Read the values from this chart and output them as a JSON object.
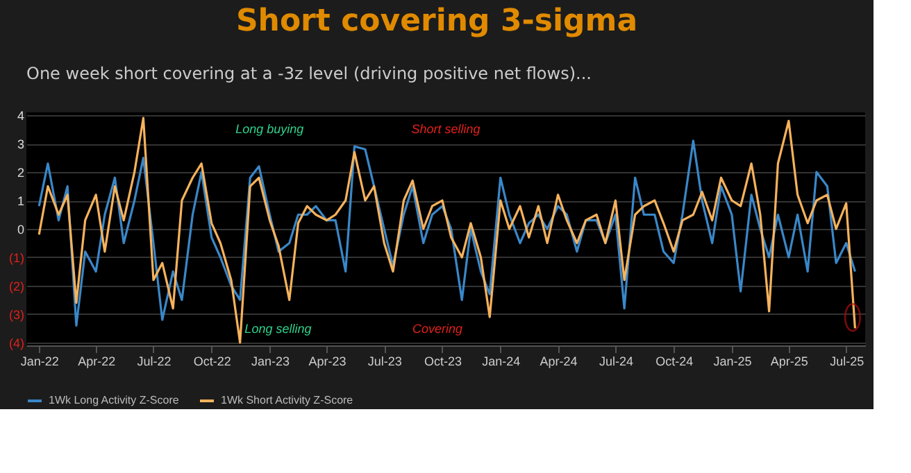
{
  "chart_data": {
    "type": "line",
    "title": "Short covering 3-sigma",
    "subtitle": "One week short covering at a -3z level (driving positive net flows)...",
    "x": [
      "2022-01-01",
      "2022-01-15",
      "2022-02-01",
      "2022-02-15",
      "2022-03-01",
      "2022-03-15",
      "2022-04-01",
      "2022-04-15",
      "2022-05-01",
      "2022-05-15",
      "2022-06-01",
      "2022-06-15",
      "2022-07-01",
      "2022-07-15",
      "2022-08-01",
      "2022-08-15",
      "2022-09-01",
      "2022-09-15",
      "2022-10-01",
      "2022-10-15",
      "2022-11-01",
      "2022-11-15",
      "2022-12-01",
      "2022-12-15",
      "2023-01-01",
      "2023-01-15",
      "2023-02-01",
      "2023-02-15",
      "2023-03-01",
      "2023-03-15",
      "2023-04-01",
      "2023-04-15",
      "2023-05-01",
      "2023-05-15",
      "2023-06-01",
      "2023-06-15",
      "2023-07-01",
      "2023-07-15",
      "2023-08-01",
      "2023-08-15",
      "2023-09-01",
      "2023-09-15",
      "2023-10-01",
      "2023-10-15",
      "2023-11-01",
      "2023-11-15",
      "2023-12-01",
      "2023-12-15",
      "2024-01-01",
      "2024-01-15",
      "2024-02-01",
      "2024-02-15",
      "2024-03-01",
      "2024-03-15",
      "2024-04-01",
      "2024-04-15",
      "2024-05-01",
      "2024-05-15",
      "2024-06-01",
      "2024-06-15",
      "2024-07-01",
      "2024-07-15",
      "2024-08-01",
      "2024-08-15",
      "2024-09-01",
      "2024-09-15",
      "2024-10-01",
      "2024-10-15",
      "2024-11-01",
      "2024-11-15",
      "2024-12-01",
      "2024-12-15",
      "2025-01-01",
      "2025-01-15",
      "2025-02-01",
      "2025-02-15",
      "2025-03-01",
      "2025-03-15",
      "2025-04-01",
      "2025-04-15",
      "2025-05-01",
      "2025-05-15",
      "2025-06-01",
      "2025-06-15",
      "2025-07-01",
      "2025-07-15"
    ],
    "series": [
      {
        "name": "1Wk Long Activity Z-Score",
        "color": "#3a87c8",
        "values": [
          0.8,
          2.3,
          0.3,
          1.5,
          -3.4,
          -0.8,
          -1.5,
          0.5,
          1.8,
          -0.5,
          1.0,
          2.5,
          -0.5,
          -3.2,
          -1.5,
          -2.5,
          0.5,
          2.0,
          -0.3,
          -1.0,
          -2.0,
          -2.5,
          1.8,
          2.2,
          0.5,
          -0.8,
          -0.5,
          0.5,
          0.5,
          0.8,
          0.3,
          0.3,
          -1.5,
          2.9,
          2.8,
          1.5,
          0.0,
          -1.3,
          0.5,
          1.5,
          -0.5,
          0.5,
          0.8,
          0.0,
          -2.5,
          0.0,
          -1.5,
          -2.3,
          1.8,
          0.5,
          -0.5,
          0.2,
          0.5,
          0.0,
          0.8,
          0.5,
          -0.8,
          0.3,
          0.3,
          -0.5,
          0.5,
          -2.8,
          1.8,
          0.5,
          0.5,
          -0.8,
          -1.2,
          0.5,
          3.1,
          1.0,
          -0.5,
          1.5,
          0.5,
          -2.2,
          1.2,
          0.0,
          -1.0,
          0.5,
          -1.0,
          0.5,
          -1.5,
          2.0,
          1.5,
          -1.2,
          -0.5,
          -1.5
        ]
      },
      {
        "name": "1Wk Short Activity Z-Score",
        "color": "#f7b25c",
        "values": [
          -0.2,
          1.5,
          0.5,
          1.2,
          -2.6,
          0.3,
          1.2,
          -0.8,
          1.5,
          0.3,
          2.0,
          3.9,
          -1.8,
          -1.2,
          -2.8,
          1.0,
          1.8,
          2.3,
          0.2,
          -0.5,
          -1.8,
          -4.0,
          1.5,
          1.8,
          0.3,
          -0.6,
          -2.5,
          0.2,
          0.8,
          0.5,
          0.3,
          0.5,
          1.0,
          2.7,
          1.0,
          1.5,
          -0.5,
          -1.5,
          1.0,
          1.7,
          0.0,
          0.8,
          1.0,
          -0.3,
          -1.0,
          0.2,
          -1.0,
          -3.1,
          1.0,
          0.0,
          0.8,
          -0.3,
          0.8,
          -0.5,
          1.2,
          0.3,
          -0.5,
          0.3,
          0.5,
          -0.5,
          1.0,
          -1.8,
          0.5,
          0.8,
          1.0,
          0.2,
          -0.8,
          0.3,
          0.5,
          1.3,
          0.3,
          1.8,
          1.0,
          0.8,
          2.3,
          0.5,
          -2.9,
          2.3,
          3.8,
          1.2,
          0.2,
          1.0,
          1.2,
          0.0,
          0.9,
          -3.5
        ]
      }
    ],
    "xlim": [
      "2021-12-12",
      "2025-07-31"
    ],
    "xticks": [
      {
        "value": "2022-01-01",
        "label": "Jan-22"
      },
      {
        "value": "2022-04-01",
        "label": "Apr-22"
      },
      {
        "value": "2022-07-01",
        "label": "Jul-22"
      },
      {
        "value": "2022-10-01",
        "label": "Oct-22"
      },
      {
        "value": "2023-01-01",
        "label": "Jan-23"
      },
      {
        "value": "2023-04-01",
        "label": "Apr-23"
      },
      {
        "value": "2023-07-01",
        "label": "Jul-23"
      },
      {
        "value": "2023-10-01",
        "label": "Oct-23"
      },
      {
        "value": "2024-01-01",
        "label": "Jan-24"
      },
      {
        "value": "2024-04-01",
        "label": "Apr-24"
      },
      {
        "value": "2024-07-01",
        "label": "Jul-24"
      },
      {
        "value": "2024-10-01",
        "label": "Oct-24"
      },
      {
        "value": "2025-01-01",
        "label": "Jan-25"
      },
      {
        "value": "2025-04-01",
        "label": "Apr-25"
      },
      {
        "value": "2025-07-01",
        "label": "Jul-25"
      }
    ],
    "ylim": [
      -4.1,
      4.1
    ],
    "yticks": [
      4,
      3,
      2,
      1,
      0,
      {
        "value": -1,
        "label": "(1)"
      },
      {
        "value": -2,
        "label": "(2)"
      },
      {
        "value": -3,
        "label": "(3)"
      },
      {
        "value": -4,
        "label": "(4)"
      }
    ],
    "grid": "y",
    "legend": "bottom",
    "annotations": [
      "Long buying",
      "Short selling",
      "Long selling",
      "Covering"
    ]
  }
}
